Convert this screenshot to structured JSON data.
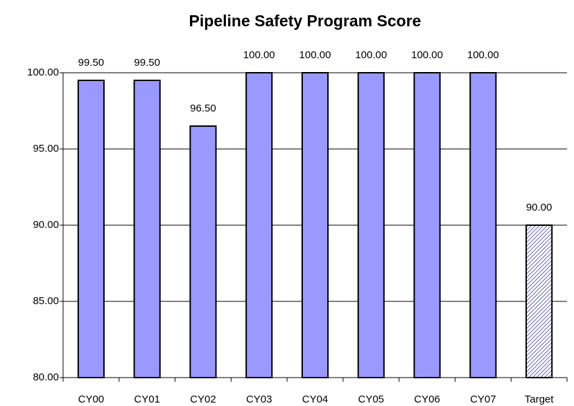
{
  "chart_data": {
    "type": "bar",
    "title": "Pipeline Safety Program Score",
    "categories": [
      "CY00",
      "CY01",
      "CY02",
      "CY03",
      "CY04",
      "CY05",
      "CY06",
      "CY07",
      "Target"
    ],
    "values": [
      99.5,
      99.5,
      96.5,
      100,
      100,
      100,
      100,
      100,
      90
    ],
    "value_labels": [
      "99.50",
      "99.50",
      "96.50",
      "100.00",
      "100.00",
      "100.00",
      "100.00",
      "100.00",
      "90.00"
    ],
    "colors": [
      "#9999ff",
      "#9999ff",
      "#9999ff",
      "#9999ff",
      "#9999ff",
      "#9999ff",
      "#9999ff",
      "#9999ff",
      "#9999cc"
    ],
    "hatched": [
      false,
      false,
      false,
      false,
      false,
      false,
      false,
      false,
      true
    ],
    "ylim": [
      80,
      100
    ],
    "yticks": [
      {
        "value": 80,
        "label": "80.00"
      },
      {
        "value": 85,
        "label": "85.00"
      },
      {
        "value": 90,
        "label": "90.00"
      },
      {
        "value": 95,
        "label": "95.00"
      },
      {
        "value": 100,
        "label": "100.00"
      }
    ],
    "grid": true
  }
}
